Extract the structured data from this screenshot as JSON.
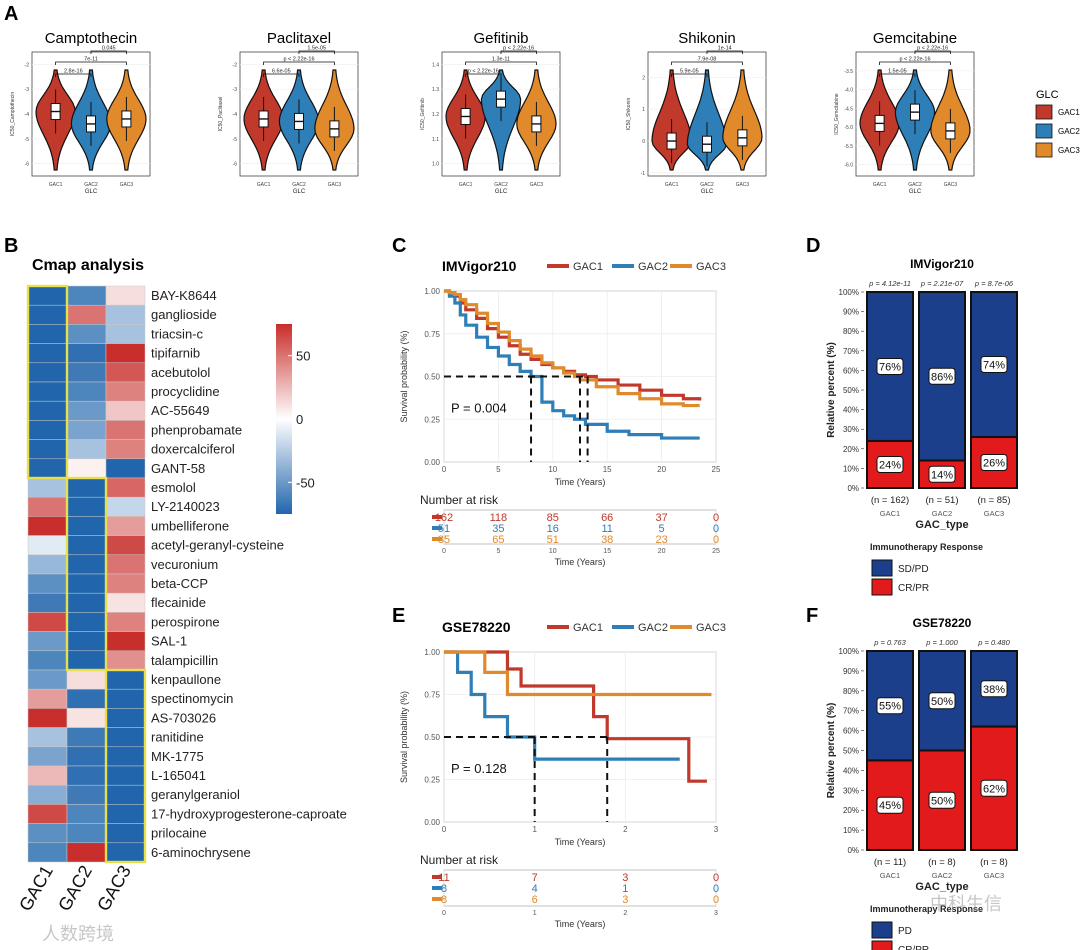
{
  "panels": {
    "A": {
      "letter": "A"
    },
    "B": {
      "letter": "B",
      "title": "Cmap analysis"
    },
    "C": {
      "letter": "C"
    },
    "D": {
      "letter": "D"
    },
    "E": {
      "letter": "E"
    },
    "F": {
      "letter": "F"
    }
  },
  "colors": {
    "GAC1": "#c0392b",
    "GAC2": "#2e7fb8",
    "GAC3": "#e08a2c",
    "navy": "#1b3f8b",
    "red": "#e31a1c"
  },
  "chart_data": [
    {
      "type": "violin",
      "panel": "A",
      "groups": [
        "GAC1",
        "GAC2",
        "GAC3"
      ],
      "xlabel": "GLC",
      "legend": {
        "title": "GLC",
        "entries": [
          "GAC1",
          "GAC2",
          "GAC3"
        ],
        "position": "right"
      },
      "drugs": [
        {
          "title": "Camptothecin",
          "ylabel": "IC50_Camptothecin",
          "ylim": [
            -6.5,
            -1.5
          ],
          "ticks": [
            "-2",
            "-3",
            "-4",
            "-5",
            "-6"
          ],
          "medians": [
            -3.9,
            -4.4,
            -4.2
          ],
          "comparisons": [
            {
              "pair": [
                1,
                2
              ],
              "p": "2.8e-16"
            },
            {
              "pair": [
                1,
                3
              ],
              "p": "7e-11"
            },
            {
              "pair": [
                2,
                3
              ],
              "p": "0.045"
            }
          ]
        },
        {
          "title": "Paclitaxel",
          "ylabel": "IC50_Paclitaxel",
          "ylim": [
            -6.5,
            -1.5
          ],
          "ticks": [
            "-2",
            "-3",
            "-4",
            "-5",
            "-6"
          ],
          "medians": [
            -4.2,
            -4.3,
            -4.6
          ],
          "comparisons": [
            {
              "pair": [
                1,
                2
              ],
              "p": "6.6e-05"
            },
            {
              "pair": [
                1,
                3
              ],
              "p": "p < 2.22e-16"
            },
            {
              "pair": [
                2,
                3
              ],
              "p": "1.5e-05"
            }
          ]
        },
        {
          "title": "Gefitinib",
          "ylabel": "IC50_Gefitinib",
          "ylim": [
            0.95,
            1.45
          ],
          "ticks": [
            "1.4",
            "1.3",
            "1.2",
            "1.1",
            "1.0"
          ],
          "medians": [
            1.19,
            1.26,
            1.16
          ],
          "comparisons": [
            {
              "pair": [
                1,
                2
              ],
              "p": "p < 2.22e-16"
            },
            {
              "pair": [
                1,
                3
              ],
              "p": "1.3e-11"
            },
            {
              "pair": [
                2,
                3
              ],
              "p": "p < 2.22e-16"
            }
          ]
        },
        {
          "title": "Shikonin",
          "ylabel": "IC50_Shikonin",
          "ylim": [
            -1.1,
            2.8
          ],
          "ticks": [
            "2",
            "1",
            "0",
            "-1"
          ],
          "medians": [
            0.0,
            -0.1,
            0.1
          ],
          "comparisons": [
            {
              "pair": [
                1,
                2
              ],
              "p": "5.9e-05"
            },
            {
              "pair": [
                1,
                3
              ],
              "p": "7.9e-08"
            },
            {
              "pair": [
                2,
                3
              ],
              "p": "1e-14"
            }
          ]
        },
        {
          "title": "Gemcitabine",
          "ylabel": "IC50_Gemcitabine",
          "ylim": [
            -6.3,
            -3.0
          ],
          "ticks": [
            "-3.5",
            "-4.0",
            "-4.5",
            "-5.0",
            "-5.5",
            "-6.0"
          ],
          "medians": [
            -4.9,
            -4.6,
            -5.1
          ],
          "comparisons": [
            {
              "pair": [
                1,
                2
              ],
              "p": "1.5e-05"
            },
            {
              "pair": [
                1,
                3
              ],
              "p": "p < 2.22e-16"
            },
            {
              "pair": [
                2,
                3
              ],
              "p": "p < 2.22e-16"
            }
          ]
        }
      ]
    },
    {
      "type": "heatmap",
      "panel": "B",
      "title": "Cmap analysis",
      "columns": [
        "GAC1",
        "GAC2",
        "GAC3"
      ],
      "colorbar": {
        "min": -75,
        "max": 75,
        "ticks": [
          "50",
          "0",
          "-50"
        ],
        "tick_values": [
          50,
          0,
          -50
        ]
      },
      "rows": [
        {
          "label": "BAY-K8644",
          "values": [
            -85,
            -60,
            12
          ]
        },
        {
          "label": "ganglioside",
          "values": [
            -85,
            50,
            -30
          ]
        },
        {
          "label": "triacsin-c",
          "values": [
            -85,
            -55,
            -30
          ]
        },
        {
          "label": "tipifarnib",
          "values": [
            -85,
            -70,
            80
          ]
        },
        {
          "label": "acebutolol",
          "values": [
            -85,
            -65,
            60
          ]
        },
        {
          "label": "procyclidine",
          "values": [
            -85,
            -60,
            45
          ]
        },
        {
          "label": "AC-55649",
          "values": [
            -85,
            -50,
            20
          ]
        },
        {
          "label": "phenprobamate",
          "values": [
            -85,
            -45,
            50
          ]
        },
        {
          "label": "doxercalciferol",
          "values": [
            -85,
            -30,
            45
          ]
        },
        {
          "label": "GANT-58",
          "values": [
            -85,
            5,
            -85
          ]
        },
        {
          "label": "esmolol",
          "values": [
            -30,
            -85,
            55
          ]
        },
        {
          "label": "LY-2140023",
          "values": [
            50,
            -85,
            -20
          ]
        },
        {
          "label": "umbelliferone",
          "values": [
            75,
            -85,
            35
          ]
        },
        {
          "label": "acetyl-geranyl-cysteine",
          "values": [
            -10,
            -85,
            65
          ]
        },
        {
          "label": "vecuronium",
          "values": [
            -35,
            -85,
            50
          ]
        },
        {
          "label": "beta-CCP",
          "values": [
            -55,
            -85,
            45
          ]
        },
        {
          "label": "flecainide",
          "values": [
            -65,
            -85,
            10
          ]
        },
        {
          "label": "perospirone",
          "values": [
            65,
            -85,
            45
          ]
        },
        {
          "label": "SAL-1",
          "values": [
            -50,
            -85,
            85
          ]
        },
        {
          "label": "talampicillin",
          "values": [
            -60,
            -85,
            40
          ]
        },
        {
          "label": "kenpaullone",
          "values": [
            -50,
            12,
            -85
          ]
        },
        {
          "label": "spectinomycin",
          "values": [
            35,
            -70,
            -85
          ]
        },
        {
          "label": "AS-703026",
          "values": [
            80,
            10,
            -85
          ]
        },
        {
          "label": "ranitidine",
          "values": [
            -30,
            -65,
            -85
          ]
        },
        {
          "label": "MK-1775",
          "values": [
            -45,
            -70,
            -85
          ]
        },
        {
          "label": "L-165041",
          "values": [
            25,
            -70,
            -85
          ]
        },
        {
          "label": "geranylgeraniol",
          "values": [
            -40,
            -65,
            -85
          ]
        },
        {
          "label": "17-hydroxyprogesterone-caproate",
          "values": [
            65,
            -60,
            -85
          ]
        },
        {
          "label": "prilocaine",
          "values": [
            -55,
            -60,
            -85
          ]
        },
        {
          "label": "6-aminochrysene",
          "values": [
            -60,
            80,
            -85
          ]
        }
      ],
      "highlight_blocks": [
        {
          "col": 0,
          "rows": [
            0,
            9
          ]
        },
        {
          "col": 1,
          "rows": [
            10,
            19
          ]
        },
        {
          "col": 2,
          "rows": [
            20,
            29
          ]
        }
      ]
    },
    {
      "type": "line",
      "subtype": "kaplan-meier",
      "panel": "C",
      "title": "IMVigor210",
      "legend": [
        "GAC1",
        "GAC2",
        "GAC3"
      ],
      "xlabel": "Time (Years)",
      "ylabel": "Survival probability (%)",
      "xlim": [
        0,
        25
      ],
      "ylim": [
        0,
        1
      ],
      "xticks": [
        "0",
        "5",
        "10",
        "15",
        "20",
        "25"
      ],
      "xtick_values": [
        0,
        5,
        10,
        15,
        20,
        25
      ],
      "yticks": [
        "0.00",
        "0.25",
        "0.50",
        "0.75",
        "1.00"
      ],
      "ytick_values": [
        0,
        0.25,
        0.5,
        0.75,
        1
      ],
      "pvalue": "P = 0.004",
      "medians": [
        13.2,
        8.0,
        12.5
      ],
      "series": [
        {
          "name": "GAC1",
          "x": [
            0,
            0.5,
            1,
            1.5,
            2,
            3,
            4,
            5,
            6,
            7,
            8,
            9,
            10,
            11,
            12,
            13,
            14,
            16,
            18,
            20,
            22,
            23.5
          ],
          "y": [
            1,
            0.99,
            0.97,
            0.93,
            0.89,
            0.84,
            0.78,
            0.73,
            0.68,
            0.63,
            0.6,
            0.57,
            0.55,
            0.53,
            0.51,
            0.5,
            0.48,
            0.45,
            0.42,
            0.39,
            0.37,
            0.36
          ]
        },
        {
          "name": "GAC2",
          "x": [
            0,
            0.5,
            1,
            1.5,
            2,
            3,
            4,
            5,
            6,
            7,
            8,
            9,
            10,
            11,
            12,
            13,
            15,
            17,
            20,
            23.5
          ],
          "y": [
            1,
            0.97,
            0.93,
            0.86,
            0.8,
            0.73,
            0.67,
            0.62,
            0.57,
            0.53,
            0.5,
            0.35,
            0.3,
            0.27,
            0.25,
            0.22,
            0.18,
            0.16,
            0.14,
            0.14
          ]
        },
        {
          "name": "GAC3",
          "x": [
            0,
            0.5,
            1,
            1.5,
            2,
            3,
            4,
            5,
            6,
            7,
            8,
            9,
            10,
            11,
            12,
            12.5,
            14,
            16,
            18,
            20,
            22,
            23.5
          ],
          "y": [
            1,
            0.99,
            0.98,
            0.95,
            0.92,
            0.87,
            0.81,
            0.76,
            0.71,
            0.66,
            0.62,
            0.58,
            0.55,
            0.52,
            0.5,
            0.48,
            0.44,
            0.4,
            0.37,
            0.34,
            0.33,
            0.33
          ]
        }
      ],
      "risk_table": {
        "title": "Number at risk",
        "xticks": [
          "0",
          "5",
          "10",
          "15",
          "20",
          "25"
        ],
        "rows": [
          {
            "name": "GAC1",
            "values": [
              "162",
              "118",
              "85",
              "66",
              "37",
              "0"
            ]
          },
          {
            "name": "GAC2",
            "values": [
              "51",
              "35",
              "16",
              "11",
              "5",
              "0"
            ]
          },
          {
            "name": "GAC3",
            "values": [
              "85",
              "65",
              "51",
              "38",
              "23",
              "0"
            ]
          }
        ]
      }
    },
    {
      "type": "bar",
      "subtype": "stacked-percent",
      "panel": "D",
      "title": "IMVigor210",
      "categories": [
        "GAC1",
        "GAC2",
        "GAC3"
      ],
      "pvalues": [
        "p = 4.12e-11",
        "p = 2.21e-07",
        "p = 8.7e-06"
      ],
      "counts": [
        "(n = 162)",
        "(n = 51)",
        "(n = 85)"
      ],
      "xlabel": "GAC_type",
      "ylabel": "Relative percent (%)",
      "yticks": [
        "0%",
        "10%",
        "20%",
        "30%",
        "40%",
        "50%",
        "60%",
        "70%",
        "80%",
        "90%",
        "100%"
      ],
      "series": [
        {
          "name": "SD/PD",
          "values": [
            76,
            86,
            74
          ],
          "labels": [
            "76%",
            "86%",
            "74%"
          ]
        },
        {
          "name": "CR/PR",
          "values": [
            24,
            14,
            26
          ],
          "labels": [
            "24%",
            "14%",
            "26%"
          ]
        }
      ],
      "legend": {
        "title": "Immunotherapy Response",
        "entries": [
          "SD/PD",
          "CR/PR"
        ],
        "position": "bottom"
      }
    },
    {
      "type": "line",
      "subtype": "kaplan-meier",
      "panel": "E",
      "title": "GSE78220",
      "legend": [
        "GAC1",
        "GAC2",
        "GAC3"
      ],
      "xlabel": "Time (Years)",
      "ylabel": "Survival probability (%)",
      "xlim": [
        0,
        3
      ],
      "ylim": [
        0,
        1
      ],
      "xticks": [
        "0",
        "1",
        "2",
        "3"
      ],
      "xtick_values": [
        0,
        1,
        2,
        3
      ],
      "yticks": [
        "0.00",
        "0.25",
        "0.50",
        "0.75",
        "1.00"
      ],
      "ytick_values": [
        0,
        0.25,
        0.5,
        0.75,
        1
      ],
      "pvalue": "P = 0.128",
      "medians": [
        1.8,
        1.0
      ],
      "series": [
        {
          "name": "GAC1",
          "x": [
            0,
            0.35,
            0.35,
            0.7,
            0.7,
            0.85,
            0.85,
            1.65,
            1.65,
            1.8,
            1.8,
            2.7,
            2.7,
            2.9
          ],
          "y": [
            1,
            1,
            1,
            1,
            0.9,
            0.9,
            0.8,
            0.8,
            0.62,
            0.62,
            0.49,
            0.49,
            0.24,
            0.24
          ]
        },
        {
          "name": "GAC2",
          "x": [
            0,
            0.15,
            0.15,
            0.3,
            0.3,
            0.45,
            0.45,
            0.7,
            0.7,
            1.0,
            1.0,
            2.6
          ],
          "y": [
            1,
            1,
            0.88,
            0.88,
            0.75,
            0.75,
            0.62,
            0.62,
            0.5,
            0.5,
            0.37,
            0.37
          ]
        },
        {
          "name": "GAC3",
          "x": [
            0,
            0.45,
            0.45,
            0.7,
            0.7,
            2.95
          ],
          "y": [
            1,
            1,
            0.88,
            0.88,
            0.75,
            0.75
          ]
        }
      ],
      "risk_table": {
        "title": "Number at risk",
        "xticks": [
          "0",
          "1",
          "2",
          "3"
        ],
        "rows": [
          {
            "name": "GAC1",
            "values": [
              "11",
              "7",
              "3",
              "0"
            ]
          },
          {
            "name": "GAC2",
            "values": [
              "8",
              "4",
              "1",
              "0"
            ]
          },
          {
            "name": "GAC3",
            "values": [
              "8",
              "6",
              "3",
              "0"
            ]
          }
        ]
      }
    },
    {
      "type": "bar",
      "subtype": "stacked-percent",
      "panel": "F",
      "title": "GSE78220",
      "categories": [
        "GAC1",
        "GAC2",
        "GAC3"
      ],
      "pvalues": [
        "p = 0.763",
        "p = 1.000",
        "p = 0.480"
      ],
      "counts": [
        "(n = 11)",
        "(n = 8)",
        "(n = 8)"
      ],
      "xlabel": "GAC_type",
      "ylabel": "Relative percent (%)",
      "yticks": [
        "0%",
        "10%",
        "20%",
        "30%",
        "40%",
        "50%",
        "60%",
        "70%",
        "80%",
        "90%",
        "100%"
      ],
      "series": [
        {
          "name": "PD",
          "values": [
            55,
            50,
            38
          ],
          "labels": [
            "55%",
            "50%",
            "38%"
          ]
        },
        {
          "name": "CR/PR",
          "values": [
            45,
            50,
            62
          ],
          "labels": [
            "45%",
            "50%",
            "62%"
          ]
        }
      ],
      "legend": {
        "title": "Immunotherapy Response",
        "entries": [
          "PD",
          "CR/PR"
        ],
        "position": "bottom"
      }
    }
  ],
  "watermarks": {
    "left": "人数跨境",
    "right": "中科生信"
  }
}
